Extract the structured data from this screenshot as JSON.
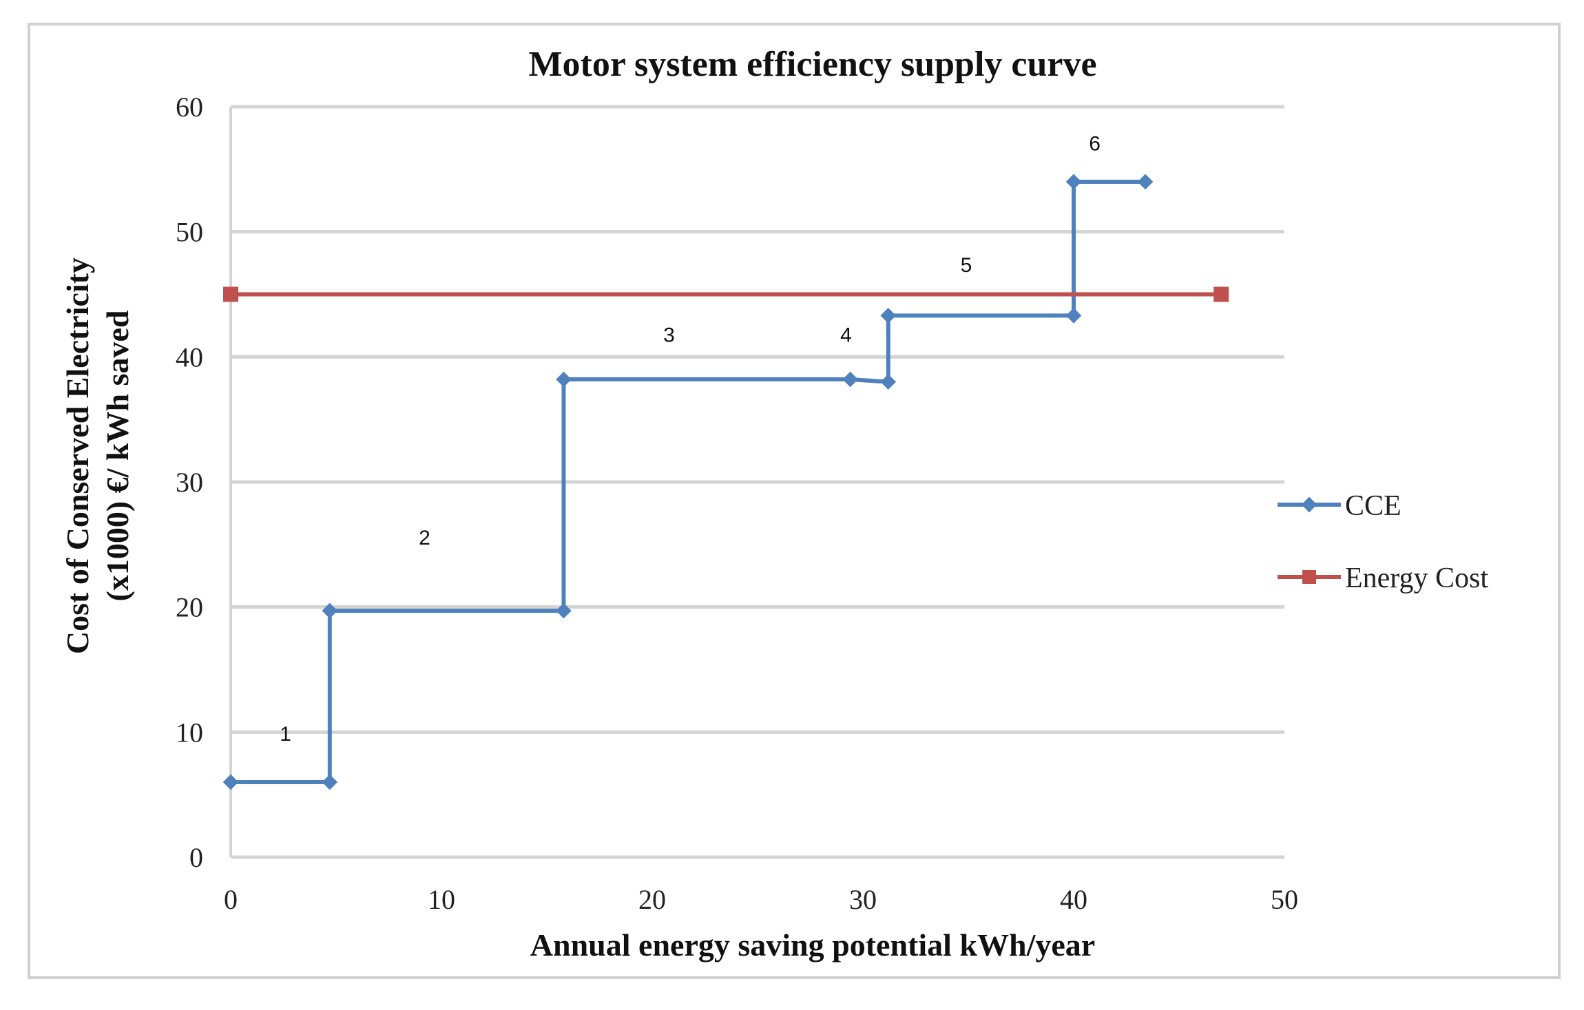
{
  "chart_data": {
    "type": "line",
    "title": "Motor system efficiency supply curve",
    "xlabel": "Annual energy saving potential kWh/year",
    "ylabel_line1": "Cost of Conserved Electricity",
    "ylabel_line2": "(x1000)  €/ kWh saved",
    "xlim": [
      0,
      50
    ],
    "ylim": [
      0,
      60
    ],
    "xticks": [
      0,
      10,
      20,
      30,
      40,
      50
    ],
    "yticks": [
      0,
      10,
      20,
      30,
      40,
      50,
      60
    ],
    "grid": "horizontal",
    "legend_position": "right",
    "series": [
      {
        "name": "CCE",
        "color": "#4f81bd",
        "marker": "diamond",
        "x": [
          0,
          4.7,
          4.7,
          15.8,
          15.8,
          29.4,
          31.2,
          31.2,
          40.0,
          40.0,
          43.4
        ],
        "y": [
          6,
          6,
          19.7,
          19.7,
          38.2,
          38.2,
          38.0,
          43.3,
          43.3,
          54.0,
          54.0
        ]
      },
      {
        "name": "Energy Cost",
        "color": "#c0504d",
        "marker": "square",
        "x": [
          0,
          47
        ],
        "y": [
          45,
          45
        ]
      }
    ],
    "annotations": [
      {
        "text": "1",
        "x": 2.6,
        "y": 9.3
      },
      {
        "text": "2",
        "x": 9.2,
        "y": 25.0
      },
      {
        "text": "3",
        "x": 20.8,
        "y": 41.2
      },
      {
        "text": "4",
        "x": 29.2,
        "y": 41.2
      },
      {
        "text": "5",
        "x": 34.9,
        "y": 46.8
      },
      {
        "text": "6",
        "x": 41.0,
        "y": 56.5
      }
    ]
  }
}
